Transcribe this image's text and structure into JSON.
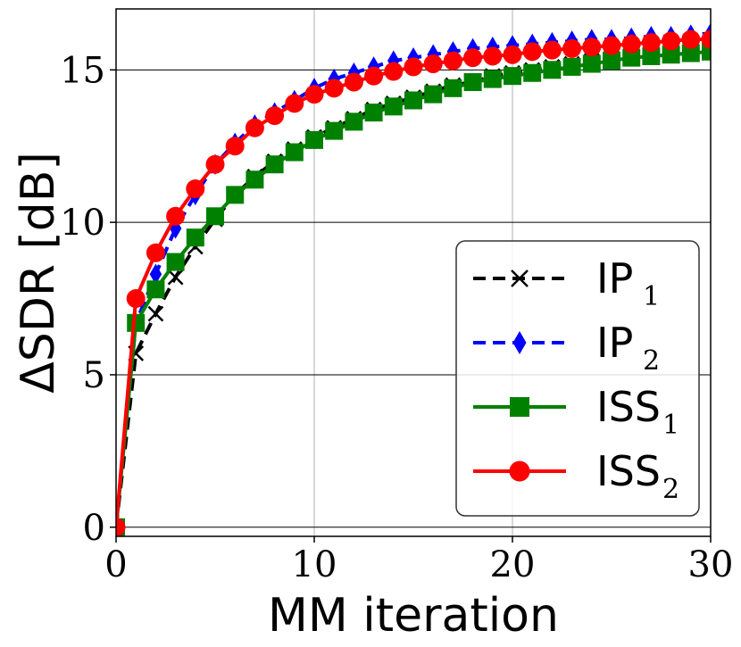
{
  "chart_data": {
    "type": "line",
    "xlabel": "MM iteration",
    "ylabel": "ΔSDR [dB]",
    "xlim": [
      0,
      30
    ],
    "ylim": [
      -0.3,
      17
    ],
    "xticks": [
      0,
      10,
      20,
      30
    ],
    "yticks": [
      0,
      5,
      10,
      15
    ],
    "grid": true,
    "legend_position": "lower-right",
    "x": [
      0,
      1,
      2,
      3,
      4,
      5,
      6,
      7,
      8,
      9,
      10,
      11,
      12,
      13,
      14,
      15,
      16,
      17,
      18,
      19,
      20,
      21,
      22,
      23,
      24,
      25,
      26,
      27,
      28,
      29,
      30
    ],
    "series": [
      {
        "name": "IP",
        "sub": "1",
        "color": "#000000",
        "marker": "x",
        "linestyle": "dashed",
        "values": [
          0,
          5.7,
          7.0,
          8.2,
          9.2,
          10.1,
          10.9,
          11.5,
          12.0,
          12.4,
          12.8,
          13.1,
          13.4,
          13.7,
          13.9,
          14.1,
          14.3,
          14.5,
          14.6,
          14.8,
          14.9,
          15.0,
          15.1,
          15.2,
          15.3,
          15.4,
          15.45,
          15.5,
          15.55,
          15.6,
          15.7
        ]
      },
      {
        "name": "IP",
        "sub": "2",
        "color": "#0000ff",
        "marker": "diamond",
        "linestyle": "dashed",
        "values": [
          0,
          6.7,
          8.3,
          9.8,
          10.9,
          11.9,
          12.6,
          13.2,
          13.6,
          14.0,
          14.4,
          14.7,
          14.9,
          15.1,
          15.3,
          15.4,
          15.5,
          15.6,
          15.7,
          15.75,
          15.8,
          15.85,
          15.9,
          15.95,
          16.0,
          16.0,
          16.05,
          16.1,
          16.1,
          16.15,
          16.2
        ]
      },
      {
        "name": "ISS",
        "sub": "1",
        "color": "#008000",
        "marker": "square",
        "linestyle": "solid",
        "values": [
          0,
          6.7,
          7.8,
          8.7,
          9.5,
          10.2,
          10.9,
          11.4,
          11.9,
          12.3,
          12.7,
          13.0,
          13.3,
          13.6,
          13.8,
          14.0,
          14.2,
          14.4,
          14.6,
          14.7,
          14.8,
          14.9,
          15.0,
          15.1,
          15.2,
          15.3,
          15.4,
          15.45,
          15.5,
          15.55,
          15.6
        ]
      },
      {
        "name": "ISS",
        "sub": "2",
        "color": "#ff0000",
        "marker": "circle",
        "linestyle": "solid",
        "values": [
          0,
          7.5,
          9.0,
          10.2,
          11.1,
          11.9,
          12.5,
          13.1,
          13.5,
          13.9,
          14.2,
          14.4,
          14.6,
          14.8,
          14.95,
          15.1,
          15.2,
          15.3,
          15.4,
          15.45,
          15.5,
          15.6,
          15.65,
          15.7,
          15.75,
          15.8,
          15.85,
          15.9,
          15.95,
          16.0,
          16.0
        ]
      }
    ]
  }
}
